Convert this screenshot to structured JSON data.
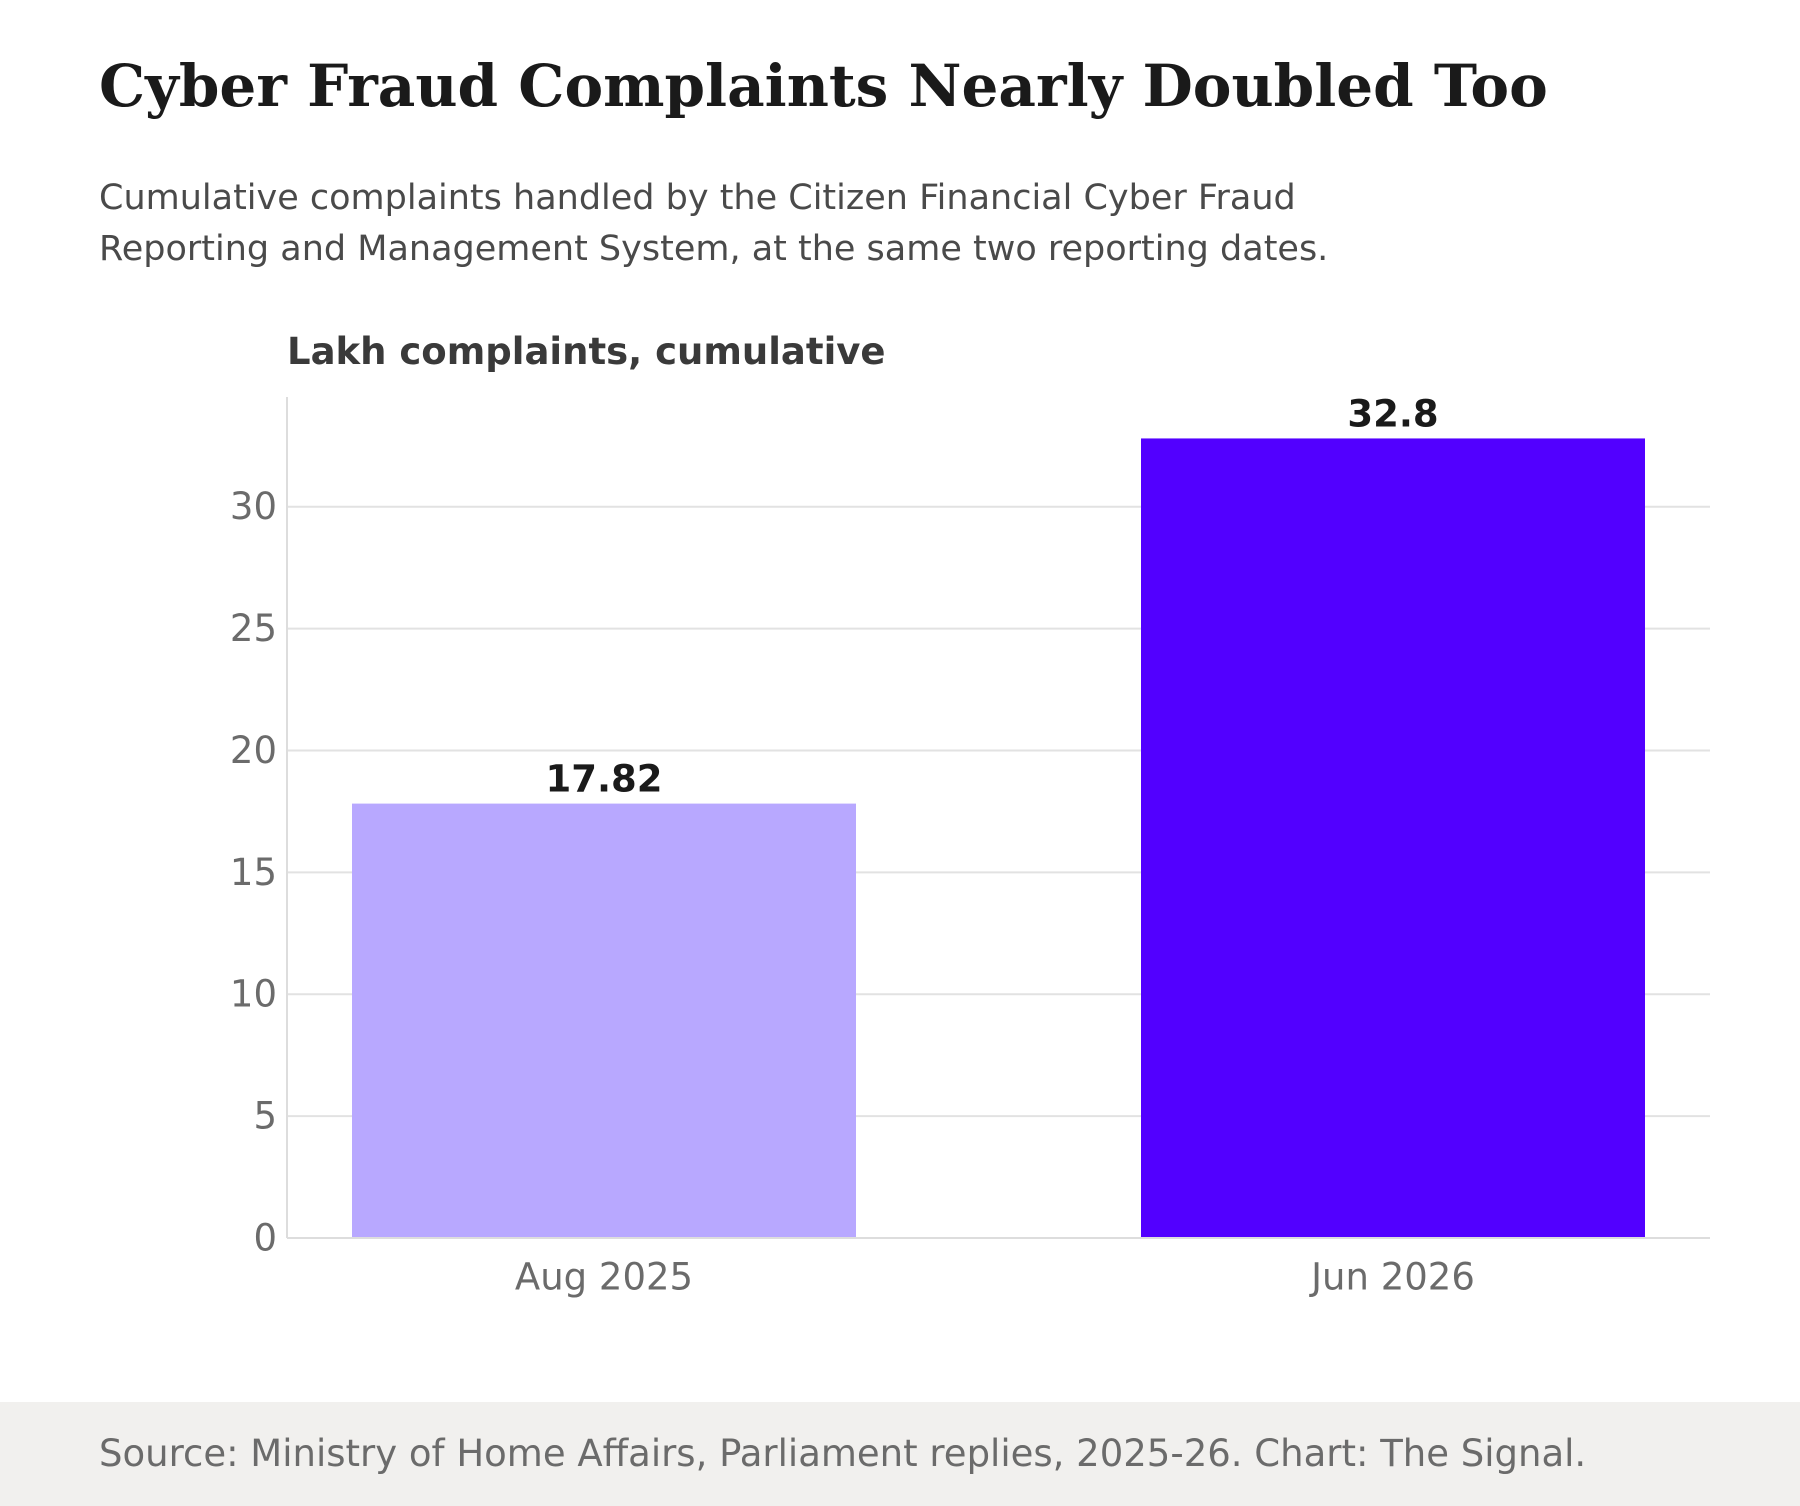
{
  "header": {
    "title": "Cyber Fraud Complaints Nearly Doubled Too",
    "subtitle_line1": "Cumulative complaints handled by the Citizen Financial Cyber Fraud",
    "subtitle_line2": "Reporting and Management System, at the same two reporting dates."
  },
  "footer": {
    "source": "Source: Ministry of Home Affairs, Parliament replies, 2025-26. Chart: The Signal."
  },
  "colors": {
    "bar_light": "#b8a8ff",
    "bar_dark": "#5200ff",
    "grid": "#e2e2e2",
    "tick_text": "#6b6b6b",
    "value_text": "#1a1a1a"
  },
  "chart_data": {
    "type": "bar",
    "ylabel": "Lakh complaints, cumulative",
    "categories": [
      "Aug 2025",
      "Jun 2026"
    ],
    "values": [
      17.82,
      32.8
    ],
    "value_labels": [
      "17.82",
      "32.8"
    ],
    "bar_colors": [
      "#b8a8ff",
      "#5200ff"
    ],
    "ylim": [
      0,
      34.5
    ],
    "yticks": [
      0,
      5,
      10,
      15,
      20,
      25,
      30
    ],
    "grid": true,
    "legend": "none"
  }
}
